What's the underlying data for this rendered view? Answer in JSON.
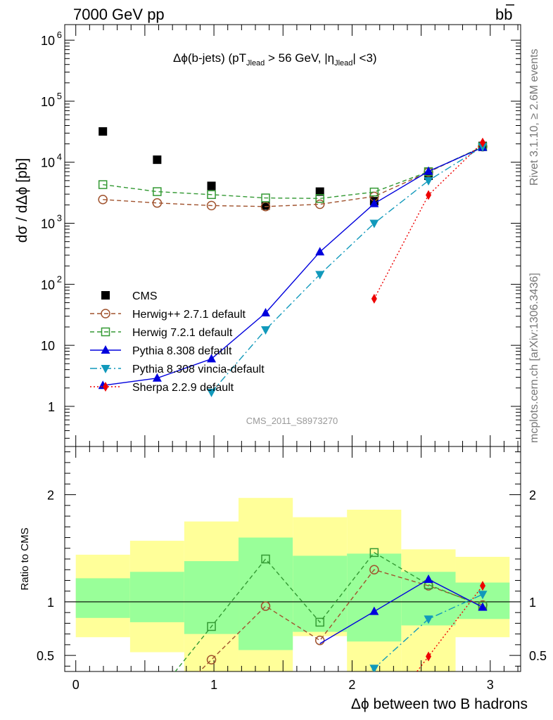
{
  "header": {
    "energy_label": "7000 GeV pp",
    "process_label": "bb",
    "rivet_label": "Rivet 3.1.10, ≥ 2.6M events",
    "mcplots_label": "mcplots.cern.ch [arXiv:1306.3436]",
    "analysis_label": "CMS_2011_S8973270"
  },
  "chart_data": [
    {
      "type": "line",
      "panel": "main",
      "title": "Δϕ(b-jets) (pT_Jlead > 56 GeV, |η_Jlead| <3)",
      "title_parts": {
        "a": "Δϕ(b-jets) (pT",
        "sub1": "Jlead",
        "b": " >  56 GeV, |η",
        "sub2": "Jlead",
        "c": "| <3)"
      },
      "ylabel": "dσ / dΔϕ [pb]",
      "yscale": "log",
      "ylim": [
        0.22,
        1800000
      ],
      "xlim": [
        -0.08,
        3.22
      ],
      "y_tick_labels": [
        "1",
        "10",
        "10",
        "10",
        "10",
        "10",
        "10"
      ],
      "y_tick_exponents": [
        "",
        "",
        "2",
        "3",
        "4",
        "5",
        "6"
      ],
      "series": [
        {
          "name": "CMS",
          "color": "#000000",
          "marker": "square-filled",
          "line": "none",
          "x": [
            0.196,
            0.589,
            0.982,
            1.374,
            1.767,
            2.16,
            2.553,
            2.945
          ],
          "y": [
            32000,
            11000,
            4100,
            1950,
            3300,
            2300,
            6000,
            18500
          ]
        },
        {
          "name": "Herwig++ 2.7.1 default",
          "color": "#a0522d",
          "marker": "circle-open",
          "line": "dashed",
          "x": [
            0.196,
            0.589,
            0.982,
            1.374,
            1.767,
            2.16,
            2.553,
            2.945
          ],
          "y": [
            2450,
            2150,
            1950,
            1880,
            2050,
            2750,
            6900,
            18000
          ]
        },
        {
          "name": "Herwig 7.2.1 default",
          "color": "#339933",
          "marker": "square-open",
          "line": "dashed",
          "x": [
            0.196,
            0.589,
            0.982,
            1.374,
            1.767,
            2.16,
            2.553,
            2.945
          ],
          "y": [
            4300,
            3300,
            2950,
            2600,
            2550,
            3250,
            7000,
            18000
          ]
        },
        {
          "name": "Pythia 8.308 default",
          "color": "#0000dd",
          "marker": "triangle-up",
          "line": "solid",
          "x": [
            0.196,
            0.589,
            0.982,
            1.374,
            1.767,
            2.16,
            2.553,
            2.945
          ],
          "y": [
            2.2,
            2.9,
            6.0,
            34,
            340,
            2100,
            7100,
            17500
          ]
        },
        {
          "name": "Pythia 8.308 vincia-default",
          "color": "#1199bb",
          "marker": "triangle-down",
          "line": "dashdot",
          "x": [
            0.982,
            1.374,
            1.767,
            2.16,
            2.553,
            2.945
          ],
          "y": [
            1.7,
            18,
            145,
            1000,
            5000,
            18000
          ]
        },
        {
          "name": "Sherpa 2.2.9 default",
          "color": "#ee0000",
          "marker": "diamond",
          "line": "dotted",
          "x": [
            2.16,
            2.553,
            2.945
          ],
          "y": [
            58,
            2900,
            21000
          ]
        }
      ]
    },
    {
      "type": "line",
      "panel": "ratio",
      "ylabel": "Ratio to CMS",
      "xlabel": "Δϕ between two B hadrons",
      "ylim": [
        0.35,
        2.45
      ],
      "xlim": [
        -0.08,
        3.22
      ],
      "x_ticks": [
        0,
        1,
        2,
        3
      ],
      "y_ticks": [
        0.5,
        1,
        2
      ],
      "bands": {
        "edges": [
          0,
          0.393,
          0.785,
          1.178,
          1.571,
          1.963,
          2.356,
          2.749,
          3.14
        ],
        "yellow_low": [
          0.67,
          0.53,
          0.35,
          0.35,
          0.68,
          0.35,
          0.35,
          0.67
        ],
        "yellow_high": [
          1.44,
          1.57,
          1.75,
          1.97,
          1.79,
          1.86,
          1.49,
          1.42
        ],
        "green_low": [
          0.85,
          0.81,
          0.7,
          0.55,
          0.72,
          0.63,
          0.78,
          0.84
        ],
        "green_high": [
          1.22,
          1.28,
          1.38,
          1.6,
          1.43,
          1.45,
          1.28,
          1.18
        ]
      },
      "series": [
        {
          "name": "Herwig++ 2.7.1 default",
          "x": [
            0.982,
            1.374,
            1.767,
            2.16,
            2.553,
            2.945
          ],
          "y": [
            0.46,
            0.96,
            0.64,
            1.3,
            1.15,
            0.97
          ]
        },
        {
          "name": "Herwig 7.2.1 default",
          "x": [
            0.982,
            1.374,
            1.767,
            2.16,
            2.553,
            2.945
          ],
          "y": [
            0.77,
            1.4,
            0.81,
            1.46,
            1.16,
            0.96
          ]
        },
        {
          "name": "Pythia 8.308 default",
          "x": [
            2.16,
            2.553,
            2.945
          ],
          "y": [
            0.91,
            1.21,
            0.95
          ]
        },
        {
          "name": "Pythia 8.308 vincia-default",
          "x": [
            2.16,
            2.553,
            2.945
          ],
          "y": [
            0.38,
            0.84,
            1.07
          ]
        },
        {
          "name": "Sherpa 2.2.9 default",
          "x": [
            2.553,
            2.945
          ],
          "y": [
            0.49,
            1.15
          ]
        }
      ]
    }
  ]
}
